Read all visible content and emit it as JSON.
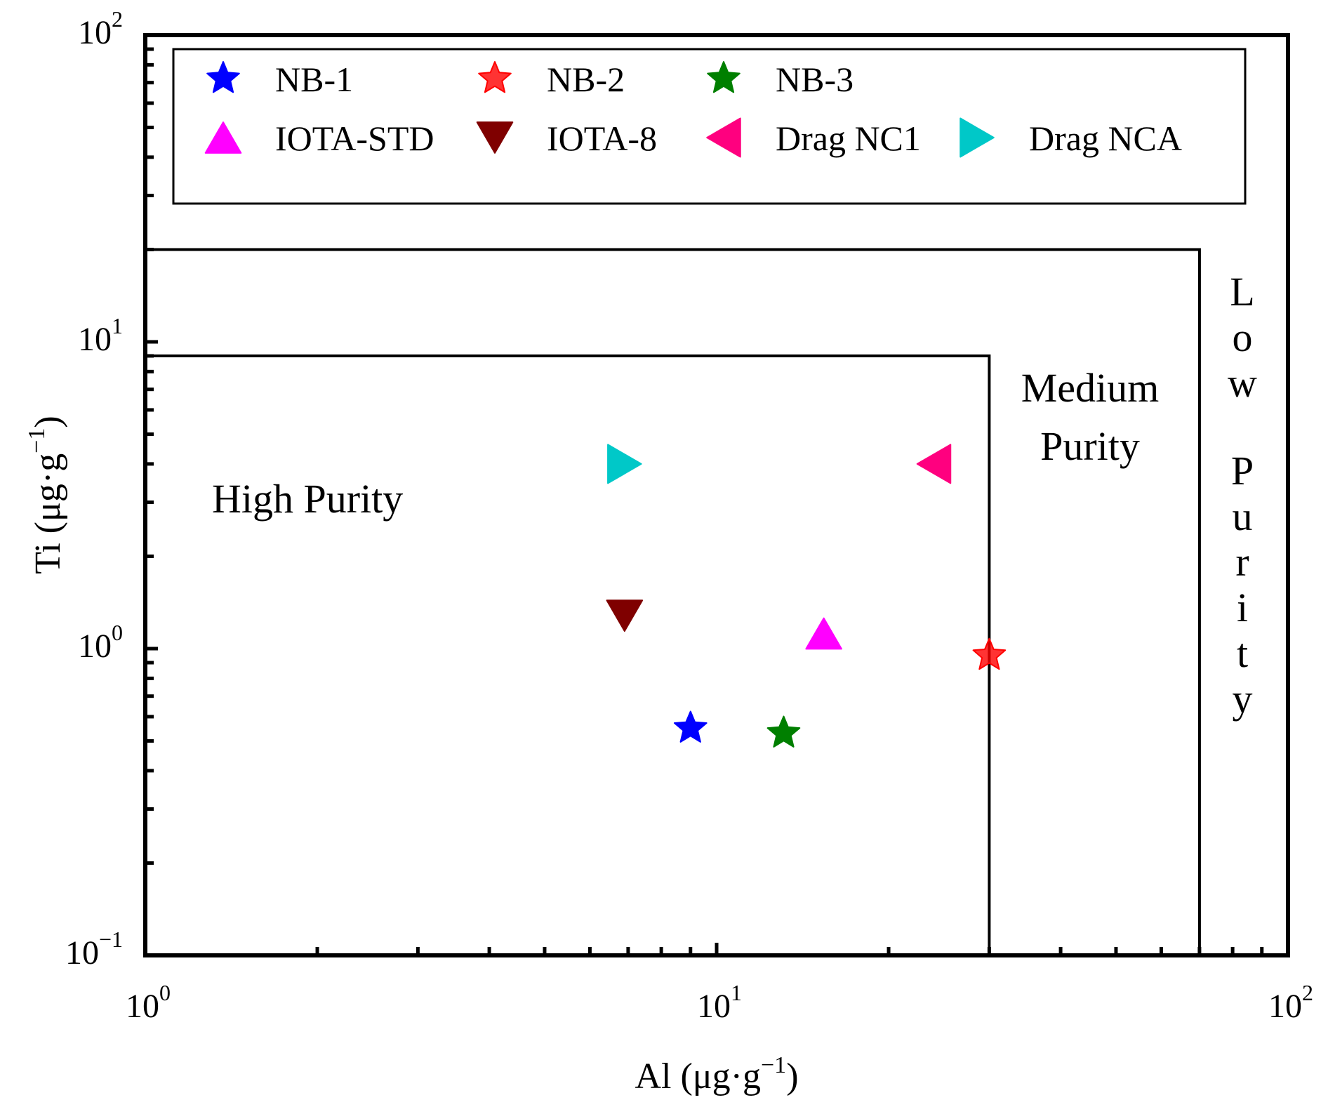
{
  "chart_data": {
    "type": "scatter",
    "title": "",
    "xlabel": "Al (μg·g⁻¹)",
    "ylabel": "Ti (μg·g⁻¹)",
    "xlabel_parts": {
      "main": "Al (μg·g",
      "sup": "−1",
      "close": ")"
    },
    "ylabel_parts": {
      "main": "Ti (μg·g",
      "sup": "−1",
      "close": ")"
    },
    "xscale": "log",
    "yscale": "log",
    "xlim": [
      1,
      100
    ],
    "ylim": [
      0.1,
      100
    ],
    "grid": false,
    "x_ticks": [
      {
        "value": 1,
        "base": "10",
        "exp": "0"
      },
      {
        "value": 10,
        "base": "10",
        "exp": "1"
      },
      {
        "value": 100,
        "base": "10",
        "exp": "2"
      }
    ],
    "y_ticks": [
      {
        "value": 0.1,
        "base": "10",
        "exp": "−1"
      },
      {
        "value": 1,
        "base": "10",
        "exp": "0"
      },
      {
        "value": 10,
        "base": "10",
        "exp": "1"
      },
      {
        "value": 100,
        "base": "10",
        "exp": "2"
      }
    ],
    "legend_position": "top",
    "series": [
      {
        "name": "NB-1",
        "marker": "star",
        "color": "#0000ff",
        "points": [
          {
            "x": 9.0,
            "y": 0.55
          }
        ]
      },
      {
        "name": "NB-2",
        "marker": "star",
        "color": "#ff0000",
        "opacity": 0.8,
        "points": [
          {
            "x": 30.0,
            "y": 0.95
          }
        ]
      },
      {
        "name": "NB-3",
        "marker": "star",
        "color": "#007f00",
        "points": [
          {
            "x": 13.1,
            "y": 0.53
          }
        ]
      },
      {
        "name": "IOTA-STD",
        "marker": "triangle-up",
        "color": "#ff00ff",
        "points": [
          {
            "x": 15.4,
            "y": 1.12
          }
        ]
      },
      {
        "name": "IOTA-8",
        "marker": "triangle-down",
        "color": "#7f0000",
        "points": [
          {
            "x": 6.9,
            "y": 1.28
          }
        ]
      },
      {
        "name": "Drag NC1",
        "marker": "triangle-left",
        "color": "#ff007f",
        "points": [
          {
            "x": 24.0,
            "y": 4.0
          }
        ]
      },
      {
        "name": "Drag NCA",
        "marker": "triangle-right",
        "color": "#00c8c8",
        "points": [
          {
            "x": 6.9,
            "y": 4.0
          }
        ]
      }
    ],
    "regions": [
      {
        "name": "High Purity",
        "label": "High Purity",
        "al_max": 30,
        "ti_max": 9
      },
      {
        "name": "Medium Purity",
        "label_lines": [
          "Medium",
          "Purity"
        ],
        "al_max": 70,
        "ti_max": 20
      },
      {
        "name": "Low Purity",
        "label_vertical": "Low Purity"
      }
    ],
    "annotations": {
      "high_purity": "High Purity",
      "medium_line1": "Medium",
      "medium_line2": "Purity",
      "low_purity": "Low Purity"
    }
  }
}
